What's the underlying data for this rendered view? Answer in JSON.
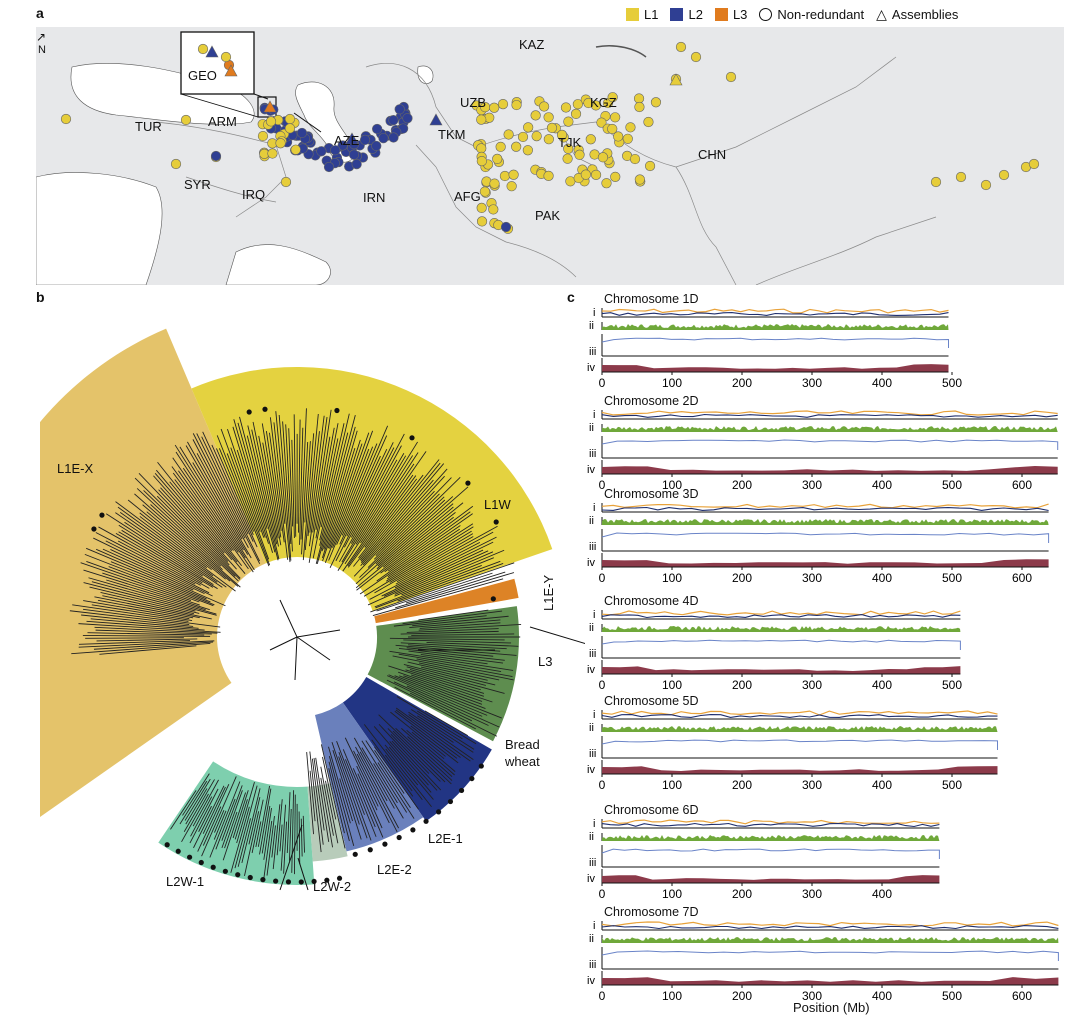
{
  "panels": {
    "a": "a",
    "b": "b",
    "c": "c"
  },
  "legend": {
    "items": [
      {
        "label": "L1",
        "color": "#e6cd3a"
      },
      {
        "label": "L2",
        "color": "#2f3f93"
      },
      {
        "label": "L3",
        "color": "#e07b1e"
      }
    ],
    "non_redundant": "Non-redundant",
    "assemblies": "Assemblies"
  },
  "map": {
    "north": "N",
    "inset_label": "GEO",
    "countries": [
      "KAZ",
      "UZB",
      "KGZ",
      "TUR",
      "ARM",
      "AZE",
      "TKM",
      "TJK",
      "CHN",
      "SYR",
      "IRQ",
      "IRN",
      "AFG",
      "PAK"
    ]
  },
  "tree": {
    "clades": [
      {
        "label": "L1E-X",
        "color": "#e4c36a"
      },
      {
        "label": "L1W",
        "color": "#e4d240"
      },
      {
        "label": "L1E-Y",
        "color": "#ffffff"
      },
      {
        "label": "L3",
        "color": "#dd8326"
      },
      {
        "label": "Bread",
        "color": "#5e8d4f"
      },
      {
        "label": "wheat",
        "color": "#5e8d4f"
      },
      {
        "label": "L2E-1",
        "color": "#223584"
      },
      {
        "label": "L2E-2",
        "color": "#6a80bc"
      },
      {
        "label": "L2W-2",
        "color": "#b8ccba"
      },
      {
        "label": "L2W-1",
        "color": "#7ecfae"
      }
    ]
  },
  "tracks": {
    "roman": [
      "i",
      "ii",
      "iii",
      "iv"
    ],
    "xlabel": "Position (Mb)",
    "colors": {
      "orange": "#e8a23a",
      "navy": "#1f2f6e",
      "green": "#6fa83a",
      "blue": "#6a84c8",
      "maroon": "#8c3a4a"
    },
    "chromosomes": [
      {
        "name": "Chromosome 1D",
        "length_mb": 495,
        "ticks": [
          "0",
          "100",
          "200",
          "300",
          "400",
          "500"
        ]
      },
      {
        "name": "Chromosome 2D",
        "length_mb": 651,
        "ticks": [
          "0",
          "100",
          "200",
          "300",
          "400",
          "500",
          "600"
        ]
      },
      {
        "name": "Chromosome 3D",
        "length_mb": 638,
        "ticks": [
          "0",
          "100",
          "200",
          "300",
          "400",
          "500",
          "600"
        ]
      },
      {
        "name": "Chromosome 4D",
        "length_mb": 512,
        "ticks": [
          "0",
          "100",
          "200",
          "300",
          "400",
          "500"
        ]
      },
      {
        "name": "Chromosome 5D",
        "length_mb": 565,
        "ticks": [
          "0",
          "100",
          "200",
          "300",
          "400",
          "500"
        ]
      },
      {
        "name": "Chromosome 6D",
        "length_mb": 482,
        "ticks": [
          "0",
          "100",
          "200",
          "300",
          "400"
        ]
      },
      {
        "name": "Chromosome 7D",
        "length_mb": 652,
        "ticks": [
          "0",
          "100",
          "200",
          "300",
          "400",
          "500",
          "600"
        ]
      }
    ]
  }
}
